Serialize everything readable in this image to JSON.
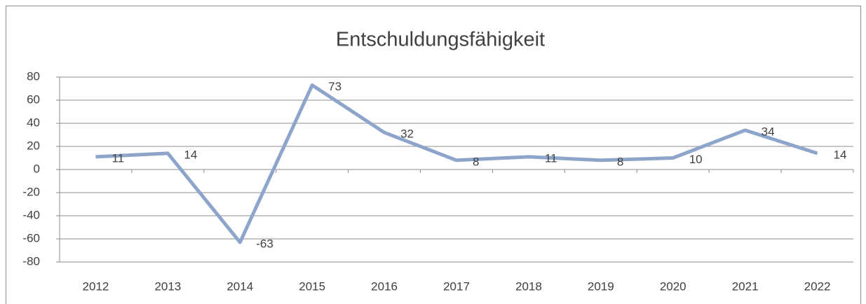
{
  "chart_data": {
    "type": "line",
    "title": "Entschuldungsfähigkeit",
    "categories": [
      "2012",
      "2013",
      "2014",
      "2015",
      "2016",
      "2017",
      "2018",
      "2019",
      "2020",
      "2021",
      "2022"
    ],
    "series": [
      {
        "name": "Entschuldungsfähigkeit",
        "color": "#8EA5CB",
        "values": [
          11,
          14,
          -63,
          73,
          32,
          8,
          11,
          8,
          10,
          34,
          14
        ]
      }
    ],
    "ylim": [
      -80,
      80
    ],
    "yticks": [
      -80,
      -60,
      -40,
      -20,
      0,
      20,
      40,
      60,
      80
    ],
    "grid": true
  }
}
